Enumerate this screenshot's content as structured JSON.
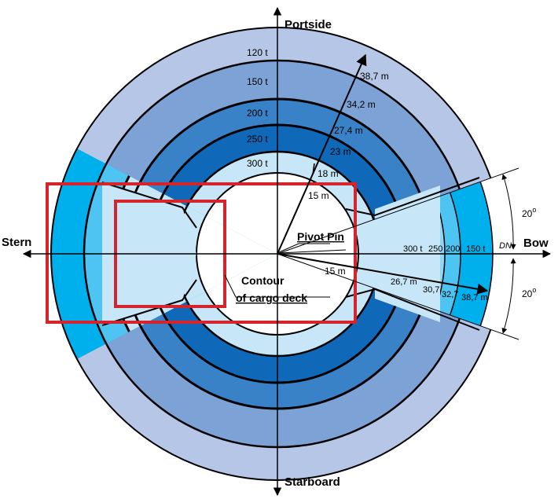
{
  "directions": {
    "top": "Portside",
    "bottom": "Starboard",
    "left": "Stern",
    "right": "Bow"
  },
  "labels": {
    "pivot": "Pivot Pin",
    "contour_line1": "Contour",
    "contour_line2": "of cargo deck",
    "dn": "DN",
    "angle_upper": "20",
    "angle_lower": "20",
    "degree": "o"
  },
  "capacity_labels_top": [
    "120 t",
    "150 t",
    "200 t",
    "250 t",
    "300 t"
  ],
  "capacity_labels_right": [
    "300 t",
    "250",
    "200",
    "150 t"
  ],
  "radii_upper": [
    "15 m",
    "18 m",
    "23 m",
    "27,4 m",
    "34,2 m",
    "38,7 m"
  ],
  "radii_lower": [
    "15 m",
    "26,7 m",
    "30,7",
    "32,7",
    "38,7 m"
  ],
  "colors": {
    "outer_ring": "#b6c6e6",
    "ring_150": "#7da2d6",
    "ring_200": "#3a82c8",
    "ring_250": "#1068b8",
    "ring_300": "#c7e6f7",
    "bow_outer": "#00b0ec",
    "bow_mid": "#4ec4f2",
    "bow_inner": "#8fd6f5",
    "contour": "#d4242c",
    "line": "#000000"
  }
}
